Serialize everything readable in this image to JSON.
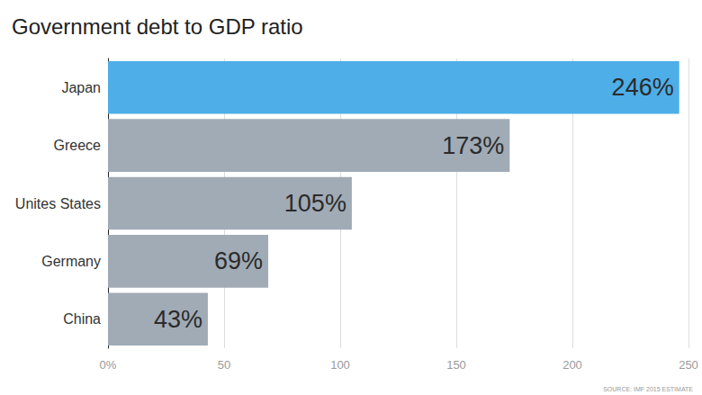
{
  "chart_data": {
    "type": "bar",
    "title": "Government debt to GDP ratio",
    "orientation": "horizontal",
    "categories": [
      "Japan",
      "Greece",
      "Unites States",
      "Germany",
      "China"
    ],
    "values": [
      246,
      173,
      105,
      69,
      43
    ],
    "value_labels": [
      "246%",
      "173%",
      "105%",
      "69%",
      "43%"
    ],
    "colors": [
      "#4daee8",
      "#a0abb6",
      "#a0abb6",
      "#a0abb6",
      "#a0abb6"
    ],
    "xlim": [
      0,
      250
    ],
    "xticks": [
      {
        "value": 0,
        "label": "0%"
      },
      50,
      100,
      150,
      200,
      250
    ],
    "grid": true,
    "data_labels": true,
    "annotations": [
      "SOURCE: IMF 2015 ESTIMATE"
    ]
  }
}
